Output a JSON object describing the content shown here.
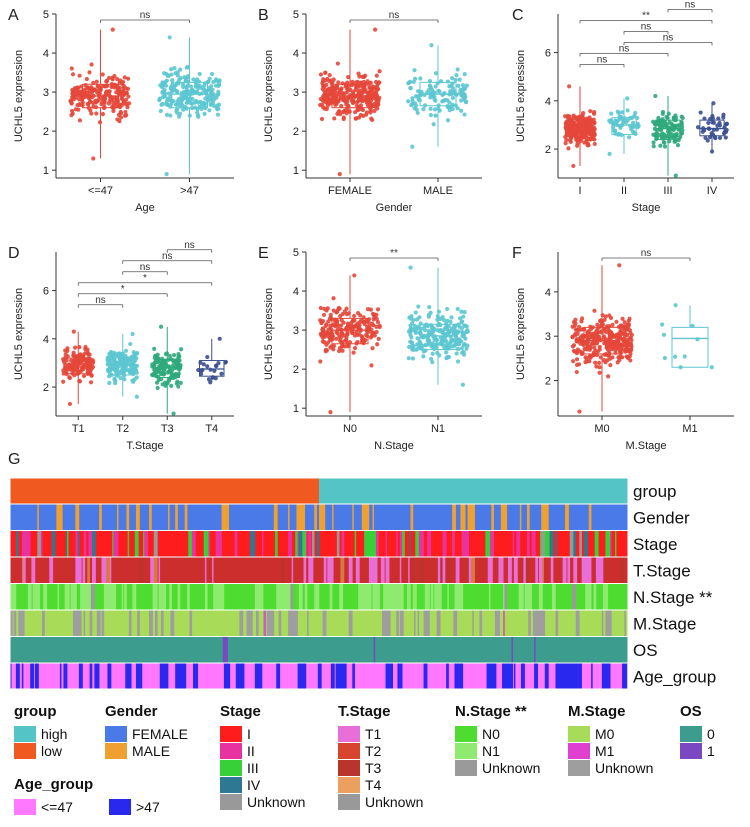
{
  "chart_data": [
    {
      "type": "box-scatter",
      "panel": "A",
      "title": "",
      "xlabel": "Age",
      "ylabel": "UCHL5  expression",
      "ylim": [
        0.8,
        5
      ],
      "yticks": [
        1,
        2,
        3,
        4,
        5
      ],
      "categories": [
        {
          "label": "<=47",
          "color": "#e4473a",
          "q1": 2.6,
          "median": 2.9,
          "q3": 3.2,
          "min": 1.3,
          "max": 4.6,
          "n": 230
        },
        {
          "label": ">47",
          "color": "#5cc6d0",
          "q1": 2.6,
          "median": 2.95,
          "q3": 3.25,
          "min": 0.9,
          "max": 4.4,
          "n": 220
        }
      ],
      "comparisons": [
        {
          "from": 0,
          "to": 1,
          "label": "ns"
        }
      ]
    },
    {
      "type": "box-scatter",
      "panel": "B",
      "title": "",
      "xlabel": "Gender",
      "ylabel": "UCHL5  expression",
      "ylim": [
        0.8,
        5
      ],
      "yticks": [
        1,
        2,
        3,
        4,
        5
      ],
      "categories": [
        {
          "label": "FEMALE",
          "color": "#e4473a",
          "q1": 2.6,
          "median": 2.9,
          "q3": 3.2,
          "min": 0.9,
          "max": 4.6,
          "n": 320
        },
        {
          "label": "MALE",
          "color": "#5cc6d0",
          "q1": 2.65,
          "median": 2.95,
          "q3": 3.25,
          "min": 1.6,
          "max": 4.2,
          "n": 130
        }
      ],
      "comparisons": [
        {
          "from": 0,
          "to": 1,
          "label": "ns"
        }
      ]
    },
    {
      "type": "box-scatter",
      "panel": "C",
      "title": "",
      "xlabel": "Stage",
      "ylabel": "UCHL5  expression",
      "ylim": [
        0.8,
        7.6
      ],
      "yticks": [
        2,
        4,
        6
      ],
      "categories": [
        {
          "label": "I",
          "color": "#e4473a",
          "q1": 2.5,
          "median": 2.85,
          "q3": 3.15,
          "min": 1.3,
          "max": 4.6,
          "n": 240
        },
        {
          "label": "II",
          "color": "#5cc6d0",
          "q1": 2.6,
          "median": 3.0,
          "q3": 3.3,
          "min": 1.8,
          "max": 4.1,
          "n": 55
        },
        {
          "label": "III",
          "color": "#2fa97c",
          "q1": 2.4,
          "median": 2.85,
          "q3": 3.2,
          "min": 0.9,
          "max": 4.2,
          "n": 110
        },
        {
          "label": "IV",
          "color": "#3a4f8f",
          "q1": 2.55,
          "median": 2.85,
          "q3": 3.2,
          "min": 1.9,
          "max": 3.9,
          "n": 40
        }
      ],
      "comparisons": [
        {
          "from": 0,
          "to": 1,
          "label": "ns"
        },
        {
          "from": 0,
          "to": 2,
          "label": "ns"
        },
        {
          "from": 1,
          "to": 3,
          "label": "ns"
        },
        {
          "from": 1,
          "to": 2,
          "label": "ns"
        },
        {
          "from": 0,
          "to": 3,
          "label": "**"
        },
        {
          "from": 2,
          "to": 3,
          "label": "ns"
        }
      ]
    },
    {
      "type": "box-scatter",
      "panel": "D",
      "title": "",
      "xlabel": "T.Stage",
      "ylabel": "UCHL5  expression",
      "ylim": [
        0.8,
        7.6
      ],
      "yticks": [
        2,
        4,
        6
      ],
      "categories": [
        {
          "label": "T1",
          "color": "#e4473a",
          "q1": 2.55,
          "median": 2.95,
          "q3": 3.2,
          "min": 1.3,
          "max": 4.3,
          "n": 140
        },
        {
          "label": "T2",
          "color": "#5cc6d0",
          "q1": 2.5,
          "median": 2.9,
          "q3": 3.25,
          "min": 1.6,
          "max": 4.2,
          "n": 160
        },
        {
          "label": "T3",
          "color": "#2fa97c",
          "q1": 2.4,
          "median": 2.8,
          "q3": 3.15,
          "min": 0.9,
          "max": 4.5,
          "n": 130
        },
        {
          "label": "T4",
          "color": "#3a4f8f",
          "q1": 2.45,
          "median": 2.75,
          "q3": 3.1,
          "min": 2.2,
          "max": 4.0,
          "n": 22
        }
      ],
      "comparisons": [
        {
          "from": 0,
          "to": 1,
          "label": "ns"
        },
        {
          "from": 0,
          "to": 2,
          "label": "*"
        },
        {
          "from": 0,
          "to": 3,
          "label": "*"
        },
        {
          "from": 1,
          "to": 2,
          "label": "ns"
        },
        {
          "from": 1,
          "to": 3,
          "label": "ns"
        },
        {
          "from": 2,
          "to": 3,
          "label": "ns"
        }
      ]
    },
    {
      "type": "box-scatter",
      "panel": "E",
      "title": "",
      "xlabel": "N.Stage",
      "ylabel": "UCHL5  expression",
      "ylim": [
        0.8,
        5
      ],
      "yticks": [
        1,
        2,
        3,
        4,
        5
      ],
      "categories": [
        {
          "label": "N0",
          "color": "#e4473a",
          "q1": 2.65,
          "median": 3.0,
          "q3": 3.3,
          "min": 0.9,
          "max": 4.4,
          "n": 220
        },
        {
          "label": "N1",
          "color": "#5cc6d0",
          "q1": 2.5,
          "median": 2.85,
          "q3": 3.15,
          "min": 1.6,
          "max": 4.6,
          "n": 230
        }
      ],
      "comparisons": [
        {
          "from": 0,
          "to": 1,
          "label": "**"
        }
      ]
    },
    {
      "type": "box-scatter",
      "panel": "F",
      "title": "",
      "xlabel": "M.Stage",
      "ylabel": "UCHL5  expression",
      "ylim": [
        1.2,
        4.9
      ],
      "yticks": [
        2,
        3,
        4
      ],
      "categories": [
        {
          "label": "M0",
          "color": "#e4473a",
          "q1": 2.6,
          "median": 2.9,
          "q3": 3.2,
          "min": 1.3,
          "max": 4.6,
          "n": 330
        },
        {
          "label": "M1",
          "color": "#5cc6d0",
          "q1": 2.3,
          "median": 2.95,
          "q3": 3.2,
          "min": 2.3,
          "max": 3.7,
          "n": 10
        }
      ],
      "comparisons": [
        {
          "from": 0,
          "to": 1,
          "label": "ns"
        }
      ]
    },
    {
      "type": "heatmap",
      "panel": "G",
      "rows": [
        {
          "label": "group",
          "colors": [
            "#f0591f",
            "#55c4c6"
          ],
          "weights": [
            50,
            50
          ],
          "sorted": true
        },
        {
          "label": "Gender",
          "colors": [
            "#4a7ae8",
            "#f0a030"
          ],
          "weights": [
            72,
            28
          ]
        },
        {
          "label": "Stage",
          "colors": [
            "#ff1c1c",
            "#e832a0",
            "#38d038",
            "#2e7894",
            "#999999"
          ],
          "weights": [
            55,
            20,
            15,
            5,
            5
          ]
        },
        {
          "label": "T.Stage",
          "colors": [
            "#cc2e2e",
            "#e96fd8",
            "#d87a40",
            "#b8342c"
          ],
          "weights": [
            60,
            30,
            5,
            5
          ]
        },
        {
          "label": "N.Stage **",
          "colors": [
            "#4fdc30",
            "#8eeb70",
            "#9a9a9a"
          ],
          "weights": [
            50,
            48,
            2
          ]
        },
        {
          "label": "M.Stage",
          "colors": [
            "#a8dc58",
            "#9e9e9e",
            "#e040d0"
          ],
          "weights": [
            60,
            37,
            3
          ]
        },
        {
          "label": "OS",
          "colors": [
            "#3c9c8e",
            "#7a48c0"
          ],
          "weights": [
            96,
            4
          ]
        },
        {
          "label": "Age_group",
          "colors": [
            "#ff78ff",
            "#2828ee"
          ],
          "weights": [
            50,
            50
          ]
        }
      ]
    }
  ],
  "legend": {
    "group": {
      "title": "group",
      "items": [
        {
          "label": "high",
          "color": "#55c4c6"
        },
        {
          "label": "low",
          "color": "#f0591f"
        }
      ]
    },
    "gender": {
      "title": "Gender",
      "items": [
        {
          "label": "FEMALE",
          "color": "#4a7ae8"
        },
        {
          "label": "MALE",
          "color": "#f0a030"
        }
      ]
    },
    "stage": {
      "title": "Stage",
      "items": [
        {
          "label": "I",
          "color": "#ff1c1c"
        },
        {
          "label": "II",
          "color": "#e832a0"
        },
        {
          "label": "III",
          "color": "#38d038"
        },
        {
          "label": "IV",
          "color": "#2e7894"
        },
        {
          "label": "Unknown",
          "color": "#999999"
        }
      ]
    },
    "tstage": {
      "title": "T.Stage",
      "items": [
        {
          "label": "T1",
          "color": "#e96fd8"
        },
        {
          "label": "T2",
          "color": "#d8452e"
        },
        {
          "label": "T3",
          "color": "#b8342c"
        },
        {
          "label": "T4",
          "color": "#eca060"
        },
        {
          "label": "Unknown",
          "color": "#999999"
        }
      ]
    },
    "nstage": {
      "title": "N.Stage **",
      "items": [
        {
          "label": "N0",
          "color": "#4fdc30"
        },
        {
          "label": "N1",
          "color": "#8eeb70"
        },
        {
          "label": "Unknown",
          "color": "#9a9a9a"
        }
      ]
    },
    "mstage": {
      "title": "M.Stage",
      "items": [
        {
          "label": "M0",
          "color": "#a8dc58"
        },
        {
          "label": "M1",
          "color": "#e040d0"
        },
        {
          "label": "Unknown",
          "color": "#9e9e9e"
        }
      ]
    },
    "os": {
      "title": "OS",
      "items": [
        {
          "label": "0",
          "color": "#3c9c8e"
        },
        {
          "label": "1",
          "color": "#7a48c0"
        }
      ]
    },
    "age": {
      "title": "Age_group",
      "items": [
        {
          "label": "<=47",
          "color": "#ff78ff"
        },
        {
          "label": ">47",
          "color": "#2828ee"
        }
      ]
    }
  },
  "panel_letter_G": "G"
}
